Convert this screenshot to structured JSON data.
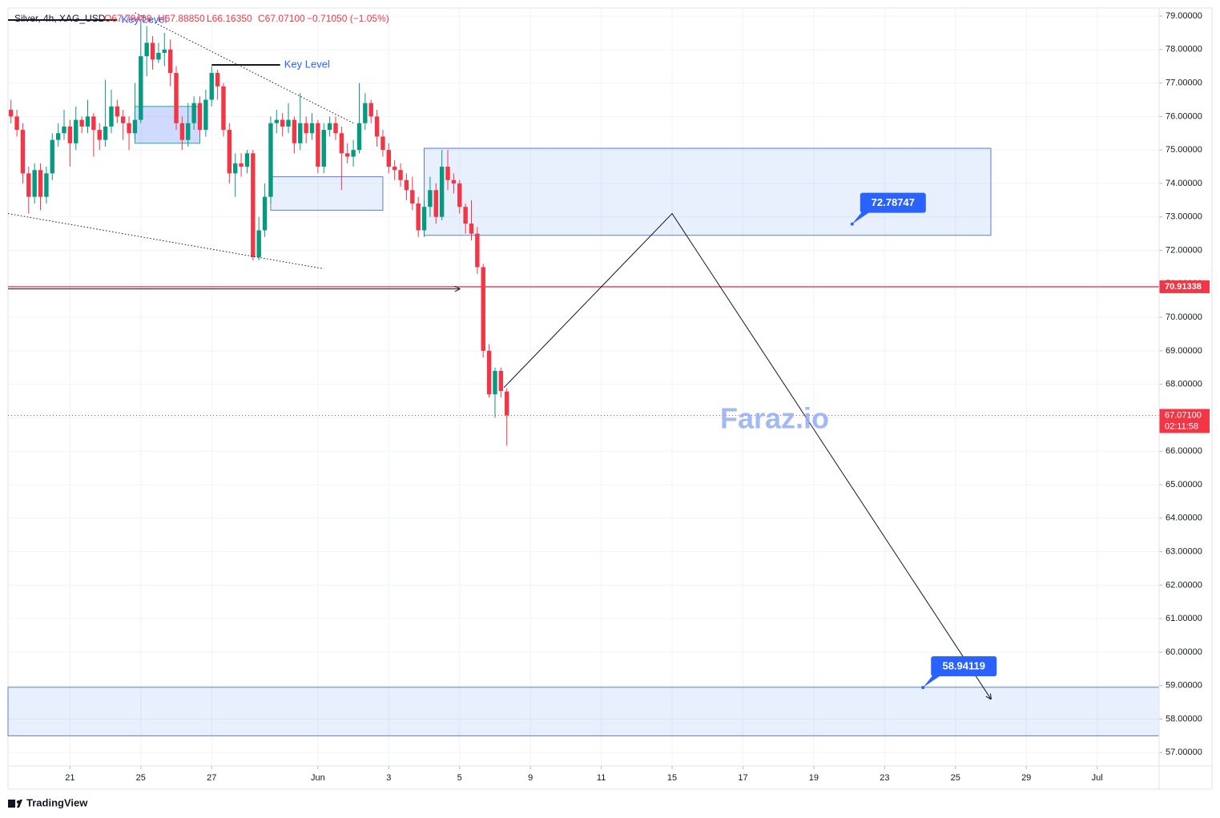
{
  "chart_data": {
    "type": "candlestick",
    "title": "Silver, 4h, XAG_USD",
    "header": [
      "O67.78408",
      "H67.88850",
      "L66.16350",
      "C67.07100",
      "−0.71050 (−1.05%)"
    ],
    "up_color": "#089981",
    "down_color": "#f23645",
    "xlim": [
      -0.5,
      194.5
    ],
    "ylim": [
      56.6,
      79.24
    ],
    "xticks": [
      {
        "value": 10,
        "label": "21"
      },
      {
        "value": 22,
        "label": "25"
      },
      {
        "value": 34,
        "label": "27"
      },
      {
        "value": 52,
        "label": "Jun"
      },
      {
        "value": 64,
        "label": "3"
      },
      {
        "value": 76,
        "label": "5"
      },
      {
        "value": 88,
        "label": "9"
      },
      {
        "value": 100,
        "label": "11"
      },
      {
        "value": 112,
        "label": "15"
      },
      {
        "value": 124,
        "label": "17"
      },
      {
        "value": 136,
        "label": "19"
      },
      {
        "value": 148,
        "label": "23"
      },
      {
        "value": 160,
        "label": "25"
      },
      {
        "value": 172,
        "label": "29"
      },
      {
        "value": 184,
        "label": "Jul"
      }
    ],
    "yticks": [
      {
        "value": 57,
        "label": "57.00000"
      },
      {
        "value": 58,
        "label": "58.00000"
      },
      {
        "value": 59,
        "label": "59.00000"
      },
      {
        "value": 60,
        "label": "60.00000"
      },
      {
        "value": 61,
        "label": "61.00000"
      },
      {
        "value": 62,
        "label": "62.00000"
      },
      {
        "value": 63,
        "label": "63.00000"
      },
      {
        "value": 64,
        "label": "64.00000"
      },
      {
        "value": 65,
        "label": "65.00000"
      },
      {
        "value": 66,
        "label": "66.00000"
      },
      {
        "value": 67,
        "label": "67.00000"
      },
      {
        "value": 68,
        "label": "68.00000"
      },
      {
        "value": 69,
        "label": "69.00000"
      },
      {
        "value": 70,
        "label": "70.00000"
      },
      {
        "value": 71,
        "label": "71.00000"
      },
      {
        "value": 72,
        "label": "72.00000"
      },
      {
        "value": 73,
        "label": "73.00000"
      },
      {
        "value": 74,
        "label": "74.00000"
      },
      {
        "value": 75,
        "label": "75.00000"
      },
      {
        "value": 76,
        "label": "76.00000"
      },
      {
        "value": 77,
        "label": "77.00000"
      },
      {
        "value": 78,
        "label": "78.00000"
      },
      {
        "value": 79,
        "label": "79.00000"
      }
    ],
    "grid": true,
    "ohlc": [
      [
        76.2,
        76.5,
        75.8,
        76.0
      ],
      [
        76.0,
        76.2,
        75.4,
        75.6
      ],
      [
        75.6,
        75.8,
        74.0,
        74.3
      ],
      [
        74.3,
        74.5,
        73.1,
        73.6
      ],
      [
        73.6,
        74.6,
        73.4,
        74.4
      ],
      [
        74.4,
        74.6,
        73.2,
        73.6
      ],
      [
        73.6,
        74.5,
        73.4,
        74.3
      ],
      [
        74.3,
        75.5,
        74.1,
        75.3
      ],
      [
        75.3,
        75.8,
        75.1,
        75.5
      ],
      [
        75.5,
        76.2,
        75.3,
        75.7
      ],
      [
        75.7,
        75.9,
        74.5,
        75.2
      ],
      [
        75.2,
        76.3,
        75.0,
        75.9
      ],
      [
        75.9,
        76.0,
        75.5,
        75.7
      ],
      [
        75.7,
        76.5,
        75.5,
        76.0
      ],
      [
        76.0,
        76.1,
        74.8,
        75.6
      ],
      [
        75.6,
        75.8,
        75.0,
        75.3
      ],
      [
        75.3,
        77.1,
        75.1,
        75.7
      ],
      [
        75.7,
        76.8,
        75.5,
        76.3
      ],
      [
        76.3,
        76.5,
        75.8,
        76.0
      ],
      [
        76.0,
        76.2,
        75.3,
        75.8
      ],
      [
        75.8,
        76.0,
        75.0,
        75.5
      ],
      [
        75.5,
        77.0,
        75.3,
        75.9
      ],
      [
        75.9,
        78.9,
        75.8,
        77.8
      ],
      [
        77.8,
        78.7,
        77.2,
        78.2
      ],
      [
        78.2,
        78.4,
        77.4,
        77.7
      ],
      [
        77.7,
        78.2,
        77.6,
        77.9
      ],
      [
        77.9,
        78.5,
        77.5,
        78.0
      ],
      [
        78.0,
        78.3,
        76.9,
        77.3
      ],
      [
        77.3,
        77.5,
        75.6,
        75.8
      ],
      [
        75.8,
        76.0,
        75.0,
        75.3
      ],
      [
        75.3,
        76.4,
        75.1,
        75.8
      ],
      [
        75.8,
        76.6,
        75.6,
        76.4
      ],
      [
        76.4,
        76.6,
        75.4,
        75.6
      ],
      [
        75.6,
        76.8,
        75.4,
        76.5
      ],
      [
        76.5,
        77.5,
        76.3,
        77.3
      ],
      [
        77.3,
        77.4,
        76.5,
        76.9
      ],
      [
        76.9,
        77.0,
        75.4,
        75.6
      ],
      [
        75.6,
        75.8,
        74.0,
        74.3
      ],
      [
        74.3,
        74.9,
        73.6,
        74.6
      ],
      [
        74.6,
        74.9,
        74.2,
        74.5
      ],
      [
        74.5,
        75.0,
        74.3,
        74.9
      ],
      [
        74.9,
        75.0,
        71.7,
        71.8
      ],
      [
        71.8,
        73.0,
        71.7,
        72.6
      ],
      [
        72.6,
        74.0,
        72.4,
        73.6
      ],
      [
        73.6,
        76.0,
        73.4,
        75.8
      ],
      [
        75.8,
        76.2,
        75.5,
        75.9
      ],
      [
        75.9,
        76.1,
        75.4,
        75.7
      ],
      [
        75.7,
        76.4,
        75.5,
        75.9
      ],
      [
        75.9,
        76.0,
        74.9,
        75.2
      ],
      [
        75.2,
        76.7,
        75.0,
        75.8
      ],
      [
        75.8,
        76.0,
        75.2,
        75.5
      ],
      [
        75.5,
        76.1,
        75.3,
        75.8
      ],
      [
        75.8,
        75.9,
        74.3,
        74.5
      ],
      [
        74.5,
        75.8,
        74.3,
        75.6
      ],
      [
        75.6,
        76.0,
        75.4,
        75.8
      ],
      [
        75.8,
        76.0,
        75.3,
        75.5
      ],
      [
        75.5,
        75.7,
        73.8,
        74.9
      ],
      [
        74.9,
        75.2,
        74.6,
        74.8
      ],
      [
        74.8,
        75.3,
        74.5,
        75.0
      ],
      [
        75.0,
        77.0,
        74.9,
        75.8
      ],
      [
        75.8,
        76.7,
        75.6,
        76.4
      ],
      [
        76.4,
        76.5,
        75.8,
        76.0
      ],
      [
        76.0,
        76.2,
        75.1,
        75.4
      ],
      [
        75.4,
        75.6,
        74.8,
        75.0
      ],
      [
        75.0,
        75.2,
        74.3,
        74.5
      ],
      [
        74.5,
        74.7,
        74.1,
        74.4
      ],
      [
        74.4,
        74.6,
        73.9,
        74.1
      ],
      [
        74.1,
        74.3,
        73.5,
        73.8
      ],
      [
        73.8,
        74.2,
        73.2,
        73.4
      ],
      [
        73.4,
        73.6,
        72.4,
        72.6
      ],
      [
        72.6,
        73.5,
        72.4,
        73.3
      ],
      [
        73.3,
        74.2,
        73.0,
        73.8
      ],
      [
        73.8,
        74.0,
        72.8,
        73.0
      ],
      [
        73.0,
        75.0,
        72.9,
        74.5
      ],
      [
        74.5,
        75.0,
        73.8,
        74.1
      ],
      [
        74.1,
        74.3,
        73.7,
        74.0
      ],
      [
        74.0,
        74.1,
        73.1,
        73.3
      ],
      [
        73.3,
        73.4,
        72.5,
        72.8
      ],
      [
        72.8,
        73.5,
        72.3,
        72.5
      ],
      [
        72.5,
        72.7,
        71.3,
        71.5
      ],
      [
        71.5,
        71.6,
        68.8,
        69.0
      ],
      [
        69.0,
        69.2,
        67.6,
        67.7
      ],
      [
        67.7,
        68.5,
        67.0,
        68.4
      ],
      [
        68.4,
        68.5,
        67.6,
        67.8
      ],
      [
        67.78408,
        67.8885,
        66.1635,
        67.071
      ]
    ],
    "last_price": {
      "value": 67.071,
      "label": "67.07100"
    },
    "countdown": "02:11:58",
    "level": {
      "value": 70.91338,
      "color": "#f23645"
    },
    "zones": [
      {
        "x": [
          70,
          166
        ],
        "y": [
          72.45,
          75.05
        ]
      },
      {
        "x": [
          -0.5,
          194.5
        ],
        "y": [
          57.5,
          58.95
        ]
      },
      {
        "x": [
          21,
          32
        ],
        "y": [
          75.2,
          76.3
        ]
      },
      {
        "x": [
          44,
          63
        ],
        "y": [
          73.2,
          74.2
        ]
      }
    ],
    "key_levels": [
      {
        "label": "Key Level",
        "x": [
          -0.5,
          18
        ],
        "value": 78.88
      },
      {
        "label": "Key Level",
        "x": [
          34,
          45.6
        ],
        "value": 77.54
      }
    ],
    "lines": [
      {
        "x": [
          21,
          58
        ],
        "y": [
          79.1,
          75.8
        ],
        "dotted": true
      },
      {
        "x": [
          -0.5,
          53
        ],
        "y": [
          73.1,
          71.45
        ],
        "dotted": true
      },
      {
        "x": [
          -0.5,
          76
        ],
        "y": [
          70.85,
          70.85
        ],
        "arrow": true
      },
      {
        "x": [
          83.5,
          112,
          166
        ],
        "y": [
          67.9,
          73.1,
          58.6
        ],
        "arrow": true
      }
    ],
    "targets": [
      {
        "value": 72.78747,
        "x": 142.5
      },
      {
        "value": 58.94119,
        "x": 154.5
      }
    ],
    "watermark": "Faraz.io",
    "brand": "TradingView"
  }
}
